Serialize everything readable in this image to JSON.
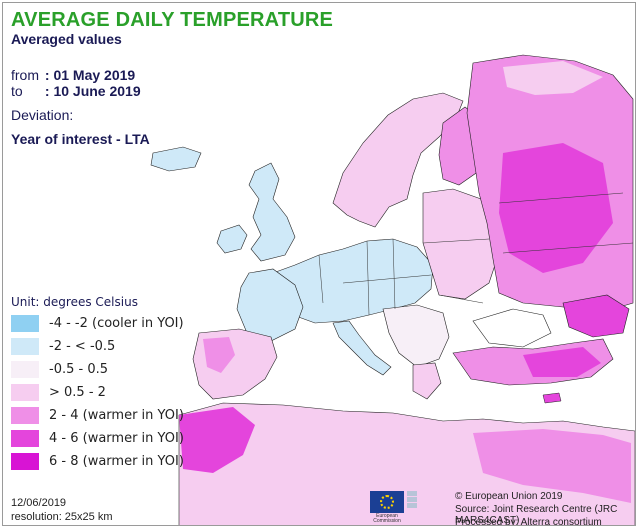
{
  "title": "AVERAGE DAILY TEMPERATURE",
  "subtitle": "Averaged values",
  "period": {
    "from_label": "from",
    "from_value": ": 01 May 2019",
    "to_label": "to",
    "to_value": ": 10 June 2019"
  },
  "deviation": {
    "label": "Deviation:",
    "description": "Year of interest - LTA"
  },
  "legend": {
    "unit": "Unit: degrees Celsius",
    "items": [
      {
        "label": "-4 - -2 (cooler in YOI)",
        "color": "#8fd0f2"
      },
      {
        "label": "-2 - < -0.5",
        "color": "#cfe9f8"
      },
      {
        "label": "-0.5 - 0.5",
        "color": "#f7eff7"
      },
      {
        "label": "> 0.5 - 2",
        "color": "#f6cdf0"
      },
      {
        "label": "2 - 4 (warmer in YOI)",
        "color": "#ef8fe7"
      },
      {
        "label": "4 - 6 (warmer in YOI)",
        "color": "#e445dc"
      },
      {
        "label": "6 - 8 (warmer in YOI)",
        "color": "#d814d4"
      }
    ]
  },
  "footer": {
    "date": "12/06/2019",
    "resolution": "resolution: 25x25 km"
  },
  "logo": {
    "icon": "eu-flag-icon",
    "caption_line1": "European",
    "caption_line2": "Commission"
  },
  "credits": [
    "© European Union 2019",
    "Source: Joint Research Centre (JRC MARS4CAST)",
    "Processed by: Alterra consortium"
  ],
  "colors": {
    "title": "#2aa02a",
    "text": "#1a1a55",
    "sea": "#ffffff",
    "border": "#222222"
  }
}
